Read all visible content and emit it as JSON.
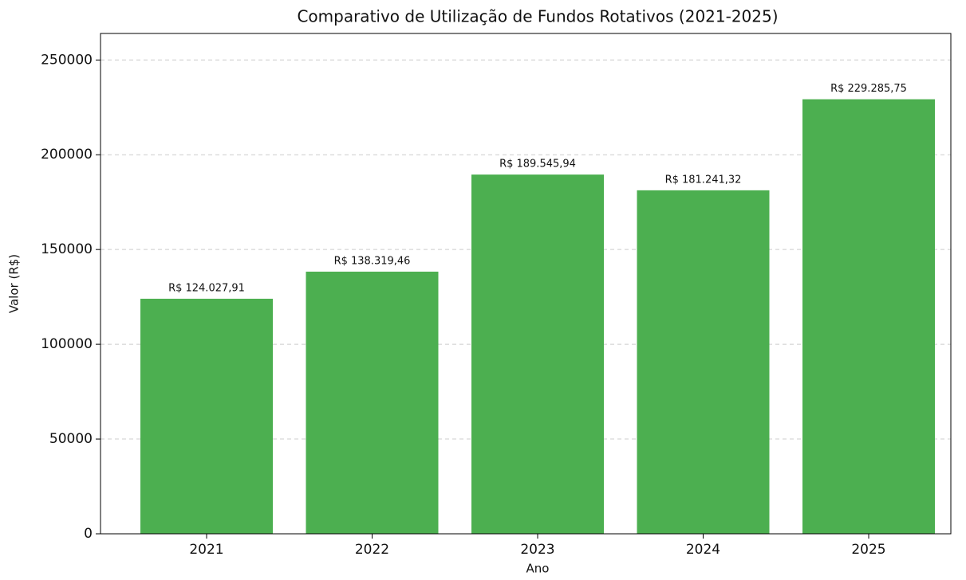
{
  "chart_data": {
    "type": "bar",
    "title": "Comparativo de Utilização de Fundos Rotativos (2021-2025)",
    "x_label": "Ano",
    "y_label": "Valor (R$)",
    "categories": [
      "2021",
      "2022",
      "2023",
      "2024",
      "2025"
    ],
    "values": [
      124027.91,
      138319.46,
      189545.94,
      181241.32,
      229285.75
    ],
    "value_labels": [
      "R$ 124.027,91",
      "R$ 138.319,46",
      "R$ 189.545,94",
      "R$ 181.241,32",
      "R$ 229.285,75"
    ],
    "color": "#4caf50",
    "ylim": [
      0,
      264000
    ],
    "yticks": [
      0,
      50000,
      100000,
      150000,
      200000,
      250000
    ],
    "grid": true
  }
}
